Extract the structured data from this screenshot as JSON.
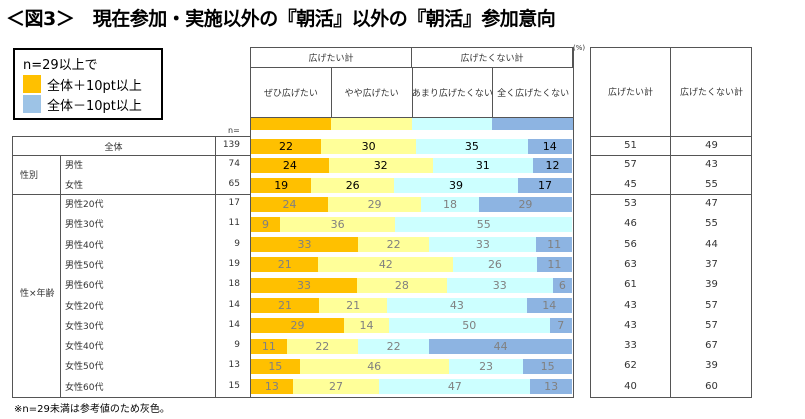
{
  "title": "＜図3＞　現在参加・実施以外の『朝活』以外の『朝活』参加意向",
  "legend": {
    "heading": "n=29以上で",
    "items": [
      {
        "label": "全体＋10pt以上",
        "color": "#ffc000"
      },
      {
        "label": "全体－10pt以上",
        "color": "#9dc3e6"
      }
    ]
  },
  "unit": "(%)",
  "n_label": "n=",
  "footnote": "※n=29未満は参考値のため灰色。",
  "colors": {
    "seg1": "#ffc000",
    "seg2": "#ffff99",
    "seg3": "#ccffff",
    "seg4": "#8db4e2",
    "grey_text": "#808080"
  },
  "chart_data": {
    "type": "bar",
    "stacked": true,
    "orientation": "horizontal",
    "group_headers": [
      "広げたい計",
      "広げたくない計"
    ],
    "series_names": [
      "ぜひ広げたい",
      "やや広げたい",
      "あまり広げたくない",
      "全く広げたくない"
    ],
    "total_headers": [
      "広げたい計",
      "広げたくない計"
    ],
    "groups": [
      {
        "label": "",
        "rows": [
          0
        ]
      },
      {
        "label": "性別",
        "rows": [
          1,
          2
        ]
      },
      {
        "label": "性×年齢",
        "rows": [
          3,
          4,
          5,
          6,
          7,
          8,
          9,
          10,
          11,
          12
        ]
      }
    ],
    "rows": [
      {
        "label": "全体",
        "n": 139,
        "values": [
          22,
          30,
          35,
          14
        ],
        "totals": [
          51,
          49
        ]
      },
      {
        "label": "男性",
        "n": 74,
        "values": [
          24,
          32,
          31,
          12
        ],
        "totals": [
          57,
          43
        ]
      },
      {
        "label": "女性",
        "n": 65,
        "values": [
          19,
          26,
          39,
          17
        ],
        "totals": [
          45,
          55
        ]
      },
      {
        "label": "男性20代",
        "n": 17,
        "values": [
          24,
          29,
          18,
          29
        ],
        "totals": [
          53,
          47
        ]
      },
      {
        "label": "男性30代",
        "n": 11,
        "values": [
          9,
          36,
          55,
          0
        ],
        "totals": [
          46,
          55
        ]
      },
      {
        "label": "男性40代",
        "n": 9,
        "values": [
          33,
          22,
          33,
          11
        ],
        "totals": [
          56,
          44
        ]
      },
      {
        "label": "男性50代",
        "n": 19,
        "values": [
          21,
          42,
          26,
          11
        ],
        "totals": [
          63,
          37
        ]
      },
      {
        "label": "男性60代",
        "n": 18,
        "values": [
          33,
          28,
          33,
          6
        ],
        "totals": [
          61,
          39
        ]
      },
      {
        "label": "女性20代",
        "n": 14,
        "values": [
          21,
          21,
          43,
          14
        ],
        "totals": [
          43,
          57
        ]
      },
      {
        "label": "女性30代",
        "n": 14,
        "values": [
          29,
          14,
          50,
          7
        ],
        "totals": [
          43,
          57
        ]
      },
      {
        "label": "女性40代",
        "n": 9,
        "values": [
          11,
          22,
          22,
          44
        ],
        "totals": [
          33,
          67
        ]
      },
      {
        "label": "女性50代",
        "n": 13,
        "values": [
          15,
          46,
          23,
          15
        ],
        "totals": [
          62,
          39
        ]
      },
      {
        "label": "女性60代",
        "n": 15,
        "values": [
          13,
          27,
          47,
          13
        ],
        "totals": [
          40,
          60
        ]
      }
    ]
  }
}
